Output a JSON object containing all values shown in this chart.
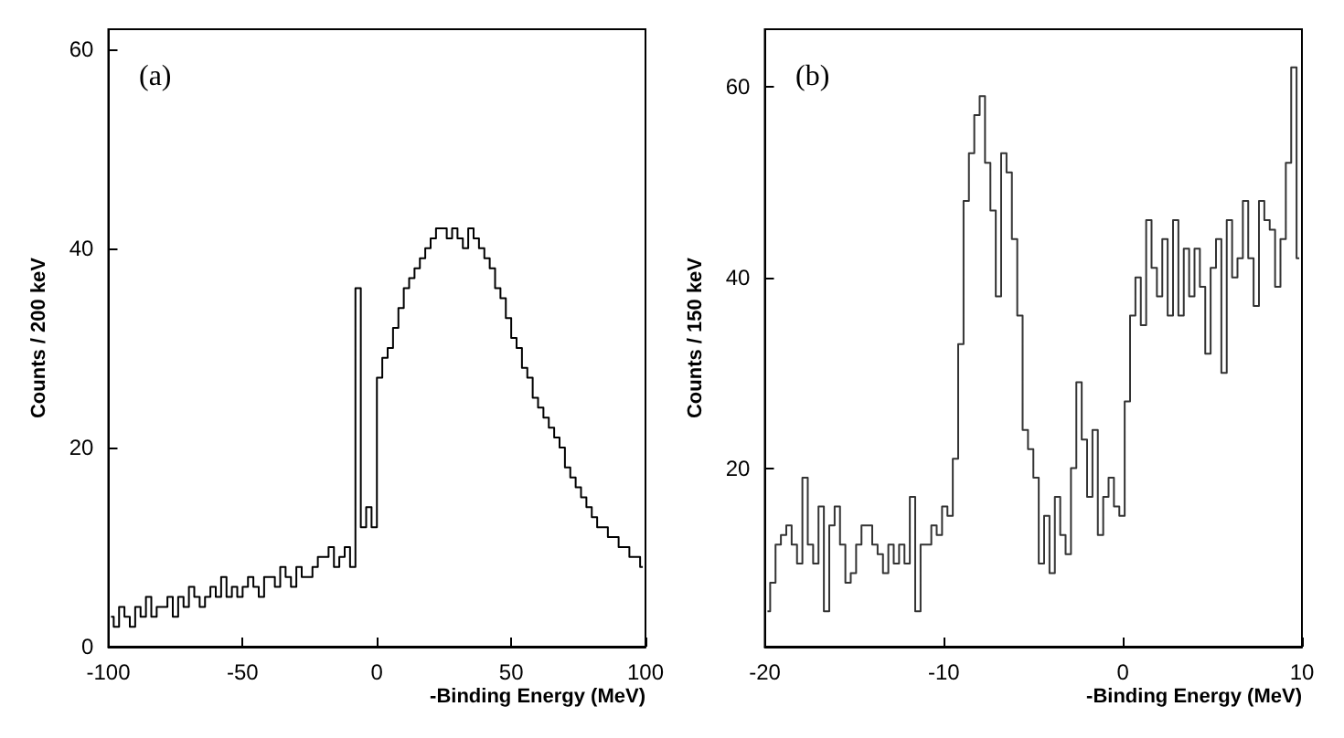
{
  "chart_data": [
    {
      "type": "step",
      "annotations": [
        "(a)"
      ],
      "xlabel": "-Binding Energy (MeV)",
      "ylabel": "Counts / 200 keV",
      "color": "#000000",
      "x": [
        -99,
        -97,
        -95,
        -93,
        -91,
        -89,
        -87,
        -85,
        -83,
        -81,
        -79,
        -77,
        -75,
        -73,
        -71,
        -69,
        -67,
        -65,
        -63,
        -61,
        -59,
        -57,
        -55,
        -53,
        -51,
        -49,
        -47,
        -45,
        -43,
        -41,
        -39,
        -37,
        -35,
        -33,
        -31,
        -29,
        -27,
        -25,
        -23,
        -21,
        -19,
        -17,
        -15,
        -13,
        -11,
        -9,
        -7,
        -5,
        -3,
        -1,
        1,
        3,
        5,
        7,
        9,
        11,
        13,
        15,
        17,
        19,
        21,
        23,
        25,
        27,
        29,
        31,
        33,
        35,
        37,
        39,
        41,
        43,
        45,
        47,
        49,
        51,
        53,
        55,
        57,
        59,
        61,
        63,
        65,
        67,
        69,
        71,
        73,
        75,
        77,
        79,
        81,
        83,
        85,
        87,
        89,
        91,
        93,
        95,
        97,
        99
      ],
      "values": [
        3,
        2,
        4,
        3,
        2,
        4,
        3,
        5,
        3,
        4,
        4,
        5,
        3,
        5,
        4,
        6,
        5,
        4,
        5,
        6,
        5,
        7,
        5,
        6,
        5,
        6,
        7,
        6,
        5,
        7,
        7,
        6,
        8,
        7,
        6,
        8,
        7,
        7,
        8,
        9,
        9,
        10,
        8,
        9,
        10,
        8,
        36,
        12,
        14,
        12,
        27,
        29,
        30,
        32,
        34,
        36,
        37,
        38,
        39,
        40,
        41,
        42,
        42,
        41,
        42,
        41,
        40,
        42,
        41,
        40,
        39,
        38,
        36,
        35,
        33,
        31,
        30,
        28,
        27,
        25,
        24,
        23,
        22,
        21,
        20,
        18,
        17,
        16,
        15,
        14,
        13,
        12,
        12,
        11,
        11,
        10,
        10,
        9,
        9,
        8
      ],
      "xlim": [
        -100,
        100
      ],
      "xticks": [
        -100,
        -50,
        0,
        50,
        100
      ],
      "ylim": [
        0,
        62
      ],
      "yticks": [
        0,
        20,
        40,
        60
      ]
    },
    {
      "type": "step",
      "annotations": [
        "(b)"
      ],
      "xlabel": "-Binding Energy (MeV)",
      "ylabel": "Counts / 150 keV",
      "color": "#333333",
      "x": [
        -19.85,
        -19.55,
        -19.25,
        -18.95,
        -18.65,
        -18.35,
        -18.05,
        -17.75,
        -17.45,
        -17.15,
        -16.85,
        -16.55,
        -16.25,
        -15.95,
        -15.65,
        -15.35,
        -15.05,
        -14.75,
        -14.45,
        -14.15,
        -13.85,
        -13.55,
        -13.25,
        -12.95,
        -12.65,
        -12.35,
        -12.05,
        -11.75,
        -11.45,
        -11.15,
        -10.85,
        -10.55,
        -10.25,
        -9.95,
        -9.65,
        -9.35,
        -9.05,
        -8.75,
        -8.45,
        -8.15,
        -7.85,
        -7.55,
        -7.25,
        -6.95,
        -6.65,
        -6.35,
        -6.05,
        -5.75,
        -5.45,
        -5.15,
        -4.85,
        -4.55,
        -4.25,
        -3.95,
        -3.65,
        -3.35,
        -3.05,
        -2.75,
        -2.45,
        -2.15,
        -1.85,
        -1.55,
        -1.25,
        -0.95,
        -0.65,
        -0.35,
        -0.05,
        0.25,
        0.55,
        0.85,
        1.15,
        1.45,
        1.75,
        2.05,
        2.35,
        2.65,
        2.95,
        3.25,
        3.55,
        3.85,
        4.15,
        4.45,
        4.75,
        5.05,
        5.35,
        5.65,
        5.95,
        6.25,
        6.55,
        6.85,
        7.15,
        7.45,
        7.75,
        8.05,
        8.35,
        8.65,
        8.95,
        9.25,
        9.55,
        9.85
      ],
      "values": [
        5,
        8,
        12,
        13,
        14,
        12,
        10,
        19,
        12,
        10,
        16,
        5,
        14,
        16,
        12,
        8,
        9,
        12,
        14,
        14,
        12,
        11,
        9,
        12,
        10,
        12,
        10,
        17,
        5,
        12,
        12,
        14,
        13,
        16,
        15,
        21,
        33,
        48,
        53,
        57,
        59,
        52,
        47,
        38,
        53,
        51,
        44,
        36,
        24,
        22,
        19,
        10,
        15,
        9,
        17,
        13,
        11,
        20,
        29,
        23,
        17,
        24,
        13,
        17,
        19,
        16,
        15,
        27,
        36,
        40,
        35,
        46,
        41,
        38,
        44,
        36,
        46,
        36,
        43,
        38,
        43,
        39,
        32,
        41,
        44,
        30,
        46,
        40,
        42,
        48,
        42,
        37,
        48,
        46,
        45,
        39,
        44,
        52,
        62,
        42
      ],
      "xlim": [
        -20,
        10
      ],
      "xticks": [
        -20,
        -10,
        0,
        10
      ],
      "ylim": [
        1.3,
        66
      ],
      "yticks": [
        20,
        40,
        60
      ]
    }
  ]
}
